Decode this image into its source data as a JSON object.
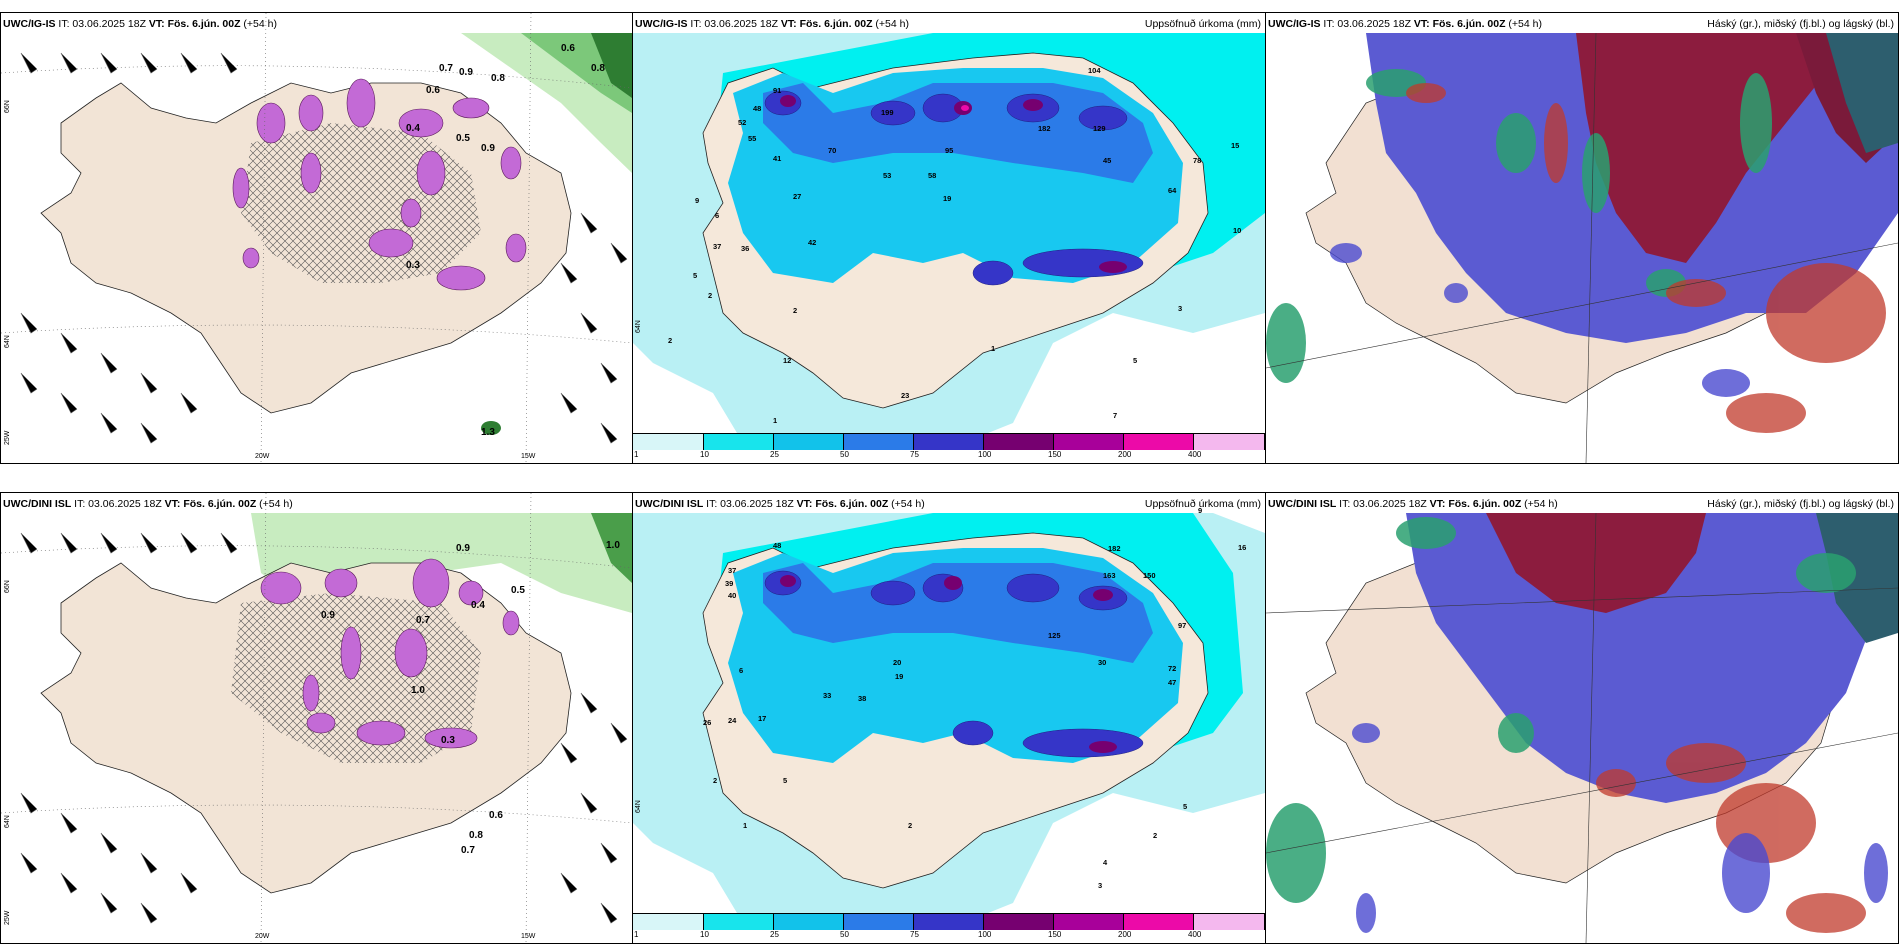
{
  "panels": [
    {
      "title_model": "UWC/IG-IS",
      "title_it": " IT: 03.06.2025 18Z ",
      "title_vt": "VT: Fös. 6.jún. 00Z",
      "title_lead": " (+54 h)",
      "title_right": "",
      "lat_labels": [
        "66N",
        "64N",
        "25W"
      ],
      "lon_labels": [
        "20W",
        "15W"
      ],
      "values": [
        "0.6",
        "0.7",
        "0.9",
        "0.8",
        "0.6",
        "0.4",
        "0.5",
        "0.9",
        "0.3",
        "1.3",
        "0.8"
      ]
    },
    {
      "title_model": "UWC/IG-IS",
      "title_it": " IT: 03.06.2025 18Z ",
      "title_vt": "VT: Fös. 6.jún. 00Z",
      "title_lead": " (+54 h)",
      "title_right": "Uppsöfnuð úrkoma (mm)",
      "lat_labels": [
        "64N"
      ],
      "values": [
        "91",
        "48",
        "52",
        "55",
        "41",
        "70",
        "199",
        "104",
        "129",
        "45",
        "95",
        "182",
        "15",
        "78",
        "64",
        "53",
        "58",
        "19",
        "27",
        "42",
        "37",
        "36",
        "9",
        "2",
        "6",
        "2",
        "5",
        "12",
        "1",
        "23",
        "7",
        "1",
        "3",
        "5",
        "2",
        "10"
      ]
    },
    {
      "title_model": "UWC/IG-IS",
      "title_it": " IT: 03.06.2025 18Z ",
      "title_vt": "VT: Fös. 6.jún. 00Z",
      "title_lead": " (+54 h)",
      "title_right": "Háský (gr.), miðský (fj.bl.) og lágský (bl.)"
    },
    {
      "title_model": "UWC/DINI ISL",
      "title_it": " IT: 03.06.2025 18Z ",
      "title_vt": "VT: Fös. 6.jún. 00Z",
      "title_lead": " (+54 h)",
      "title_right": "",
      "lat_labels": [
        "66N",
        "64N",
        "25W"
      ],
      "lon_labels": [
        "20W",
        "15W"
      ],
      "values": [
        "0.9",
        "1.0",
        "0.5",
        "0.7",
        "0.4",
        "1.0",
        "0.3",
        "0.6",
        "0.8",
        "0.7",
        "0.9"
      ]
    },
    {
      "title_model": "UWC/DINI ISL",
      "title_it": " IT: 03.06.2025 18Z ",
      "title_vt": "VT: Fös. 6.jún. 00Z",
      "title_lead": " (+54 h)",
      "title_right": "Uppsöfnuð úrkoma (mm)",
      "lat_labels": [
        "64N"
      ],
      "values": [
        "48",
        "37",
        "39",
        "40",
        "182",
        "163",
        "150",
        "125",
        "97",
        "16",
        "9",
        "72",
        "47",
        "30",
        "20",
        "19",
        "33",
        "38",
        "26",
        "24",
        "17",
        "2",
        "5",
        "6",
        "1",
        "2",
        "4",
        "3",
        "2",
        "5"
      ]
    },
    {
      "title_model": "UWC/DINI ISL",
      "title_it": " IT: 03.06.2025 18Z ",
      "title_vt": "VT: Fös. 6.jún. 00Z",
      "title_lead": " (+54 h)",
      "title_right": "Háský (gr.), miðský (fj.bl.) og lágský (bl.)"
    }
  ],
  "colorbar": {
    "ticks": [
      "1",
      "10",
      "25",
      "50",
      "75",
      "100",
      "150",
      "200",
      "400"
    ],
    "colors": [
      "#d8f6f8",
      "#18e4ec",
      "#12c2ea",
      "#2b7be8",
      "#3535c8",
      "#760070",
      "#a8009a",
      "#ec0aa8",
      "#f4b8ee"
    ]
  },
  "colors": {
    "land": "#f2e4d6",
    "precip_light": "#b9f0f4",
    "cyan": "#00f0f0",
    "purple_precip": "#b84ad0",
    "green_light": "#b8e8b0",
    "green_dark": "#3a8a3a",
    "cloud_blue": "#5858cc",
    "cloud_red": "#8e1c3c",
    "cloud_green": "#2aa070"
  }
}
